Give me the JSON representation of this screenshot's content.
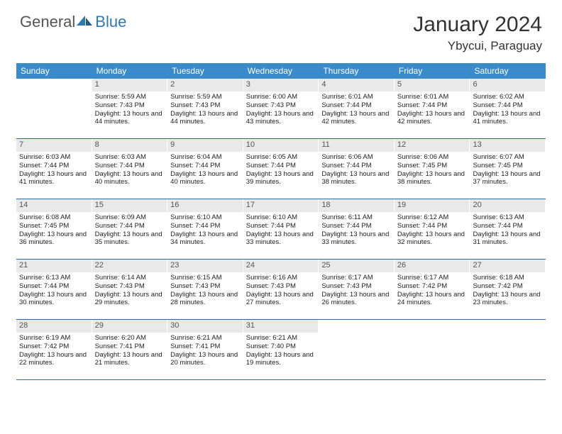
{
  "brand": {
    "text_gray": "General",
    "text_blue": "Blue",
    "icon_color": "#2b7ab8"
  },
  "title": "January 2024",
  "location": "Ybycui, Paraguay",
  "colors": {
    "header_bg": "#3a8bc9",
    "header_text": "#ffffff",
    "daynum_bg": "#e9e9e9",
    "divider": "#2b6da8"
  },
  "daysOfWeek": [
    "Sunday",
    "Monday",
    "Tuesday",
    "Wednesday",
    "Thursday",
    "Friday",
    "Saturday"
  ],
  "weeks": [
    [
      {
        "n": "",
        "sr": "",
        "ss": "",
        "dl": ""
      },
      {
        "n": "1",
        "sr": "Sunrise: 5:59 AM",
        "ss": "Sunset: 7:43 PM",
        "dl": "Daylight: 13 hours and 44 minutes."
      },
      {
        "n": "2",
        "sr": "Sunrise: 5:59 AM",
        "ss": "Sunset: 7:43 PM",
        "dl": "Daylight: 13 hours and 44 minutes."
      },
      {
        "n": "3",
        "sr": "Sunrise: 6:00 AM",
        "ss": "Sunset: 7:43 PM",
        "dl": "Daylight: 13 hours and 43 minutes."
      },
      {
        "n": "4",
        "sr": "Sunrise: 6:01 AM",
        "ss": "Sunset: 7:44 PM",
        "dl": "Daylight: 13 hours and 42 minutes."
      },
      {
        "n": "5",
        "sr": "Sunrise: 6:01 AM",
        "ss": "Sunset: 7:44 PM",
        "dl": "Daylight: 13 hours and 42 minutes."
      },
      {
        "n": "6",
        "sr": "Sunrise: 6:02 AM",
        "ss": "Sunset: 7:44 PM",
        "dl": "Daylight: 13 hours and 41 minutes."
      }
    ],
    [
      {
        "n": "7",
        "sr": "Sunrise: 6:03 AM",
        "ss": "Sunset: 7:44 PM",
        "dl": "Daylight: 13 hours and 41 minutes."
      },
      {
        "n": "8",
        "sr": "Sunrise: 6:03 AM",
        "ss": "Sunset: 7:44 PM",
        "dl": "Daylight: 13 hours and 40 minutes."
      },
      {
        "n": "9",
        "sr": "Sunrise: 6:04 AM",
        "ss": "Sunset: 7:44 PM",
        "dl": "Daylight: 13 hours and 40 minutes."
      },
      {
        "n": "10",
        "sr": "Sunrise: 6:05 AM",
        "ss": "Sunset: 7:44 PM",
        "dl": "Daylight: 13 hours and 39 minutes."
      },
      {
        "n": "11",
        "sr": "Sunrise: 6:06 AM",
        "ss": "Sunset: 7:44 PM",
        "dl": "Daylight: 13 hours and 38 minutes."
      },
      {
        "n": "12",
        "sr": "Sunrise: 6:06 AM",
        "ss": "Sunset: 7:45 PM",
        "dl": "Daylight: 13 hours and 38 minutes."
      },
      {
        "n": "13",
        "sr": "Sunrise: 6:07 AM",
        "ss": "Sunset: 7:45 PM",
        "dl": "Daylight: 13 hours and 37 minutes."
      }
    ],
    [
      {
        "n": "14",
        "sr": "Sunrise: 6:08 AM",
        "ss": "Sunset: 7:45 PM",
        "dl": "Daylight: 13 hours and 36 minutes."
      },
      {
        "n": "15",
        "sr": "Sunrise: 6:09 AM",
        "ss": "Sunset: 7:44 PM",
        "dl": "Daylight: 13 hours and 35 minutes."
      },
      {
        "n": "16",
        "sr": "Sunrise: 6:10 AM",
        "ss": "Sunset: 7:44 PM",
        "dl": "Daylight: 13 hours and 34 minutes."
      },
      {
        "n": "17",
        "sr": "Sunrise: 6:10 AM",
        "ss": "Sunset: 7:44 PM",
        "dl": "Daylight: 13 hours and 33 minutes."
      },
      {
        "n": "18",
        "sr": "Sunrise: 6:11 AM",
        "ss": "Sunset: 7:44 PM",
        "dl": "Daylight: 13 hours and 33 minutes."
      },
      {
        "n": "19",
        "sr": "Sunrise: 6:12 AM",
        "ss": "Sunset: 7:44 PM",
        "dl": "Daylight: 13 hours and 32 minutes."
      },
      {
        "n": "20",
        "sr": "Sunrise: 6:13 AM",
        "ss": "Sunset: 7:44 PM",
        "dl": "Daylight: 13 hours and 31 minutes."
      }
    ],
    [
      {
        "n": "21",
        "sr": "Sunrise: 6:13 AM",
        "ss": "Sunset: 7:44 PM",
        "dl": "Daylight: 13 hours and 30 minutes."
      },
      {
        "n": "22",
        "sr": "Sunrise: 6:14 AM",
        "ss": "Sunset: 7:43 PM",
        "dl": "Daylight: 13 hours and 29 minutes."
      },
      {
        "n": "23",
        "sr": "Sunrise: 6:15 AM",
        "ss": "Sunset: 7:43 PM",
        "dl": "Daylight: 13 hours and 28 minutes."
      },
      {
        "n": "24",
        "sr": "Sunrise: 6:16 AM",
        "ss": "Sunset: 7:43 PM",
        "dl": "Daylight: 13 hours and 27 minutes."
      },
      {
        "n": "25",
        "sr": "Sunrise: 6:17 AM",
        "ss": "Sunset: 7:43 PM",
        "dl": "Daylight: 13 hours and 26 minutes."
      },
      {
        "n": "26",
        "sr": "Sunrise: 6:17 AM",
        "ss": "Sunset: 7:42 PM",
        "dl": "Daylight: 13 hours and 24 minutes."
      },
      {
        "n": "27",
        "sr": "Sunrise: 6:18 AM",
        "ss": "Sunset: 7:42 PM",
        "dl": "Daylight: 13 hours and 23 minutes."
      }
    ],
    [
      {
        "n": "28",
        "sr": "Sunrise: 6:19 AM",
        "ss": "Sunset: 7:42 PM",
        "dl": "Daylight: 13 hours and 22 minutes."
      },
      {
        "n": "29",
        "sr": "Sunrise: 6:20 AM",
        "ss": "Sunset: 7:41 PM",
        "dl": "Daylight: 13 hours and 21 minutes."
      },
      {
        "n": "30",
        "sr": "Sunrise: 6:21 AM",
        "ss": "Sunset: 7:41 PM",
        "dl": "Daylight: 13 hours and 20 minutes."
      },
      {
        "n": "31",
        "sr": "Sunrise: 6:21 AM",
        "ss": "Sunset: 7:40 PM",
        "dl": "Daylight: 13 hours and 19 minutes."
      },
      {
        "n": "",
        "sr": "",
        "ss": "",
        "dl": ""
      },
      {
        "n": "",
        "sr": "",
        "ss": "",
        "dl": ""
      },
      {
        "n": "",
        "sr": "",
        "ss": "",
        "dl": ""
      }
    ]
  ]
}
